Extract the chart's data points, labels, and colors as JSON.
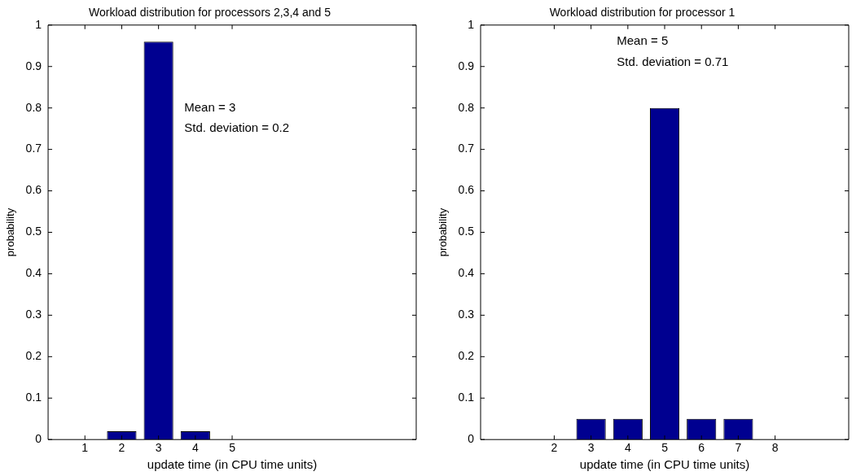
{
  "chart_data": [
    {
      "type": "bar",
      "title": "Workload distribution for processors 2,3,4 and 5",
      "xlabel": "update time (in CPU time units)",
      "ylabel": "probability",
      "x": [
        2,
        3,
        4
      ],
      "values": [
        0.02,
        0.96,
        0.02
      ],
      "color": "#000090",
      "xlim": [
        0,
        10
      ],
      "xticks": [
        1,
        2,
        3,
        4,
        5
      ],
      "ylim": [
        0,
        1
      ],
      "yticks": [
        0,
        0.1,
        0.2,
        0.3,
        0.4,
        0.5,
        0.6,
        0.7,
        0.8,
        0.9,
        1
      ],
      "grid": false,
      "legend": false,
      "annotations": [
        "Mean = 3",
        "Std. deviation = 0.2"
      ]
    },
    {
      "type": "bar",
      "title": "Workload distribution for processor 1",
      "xlabel": "update time (in CPU time units)",
      "ylabel": "probability",
      "x": [
        3,
        4,
        5,
        6,
        7
      ],
      "values": [
        0.05,
        0.05,
        0.8,
        0.05,
        0.05
      ],
      "color": "#000090",
      "xlim": [
        0,
        10
      ],
      "xticks": [
        2,
        3,
        4,
        5,
        6,
        7,
        8
      ],
      "ylim": [
        0,
        1
      ],
      "yticks": [
        0,
        0.1,
        0.2,
        0.3,
        0.4,
        0.5,
        0.6,
        0.7,
        0.8,
        0.9,
        1
      ],
      "grid": false,
      "legend": false,
      "annotations": [
        "Mean = 5",
        "Std. deviation = 0.71"
      ]
    }
  ]
}
